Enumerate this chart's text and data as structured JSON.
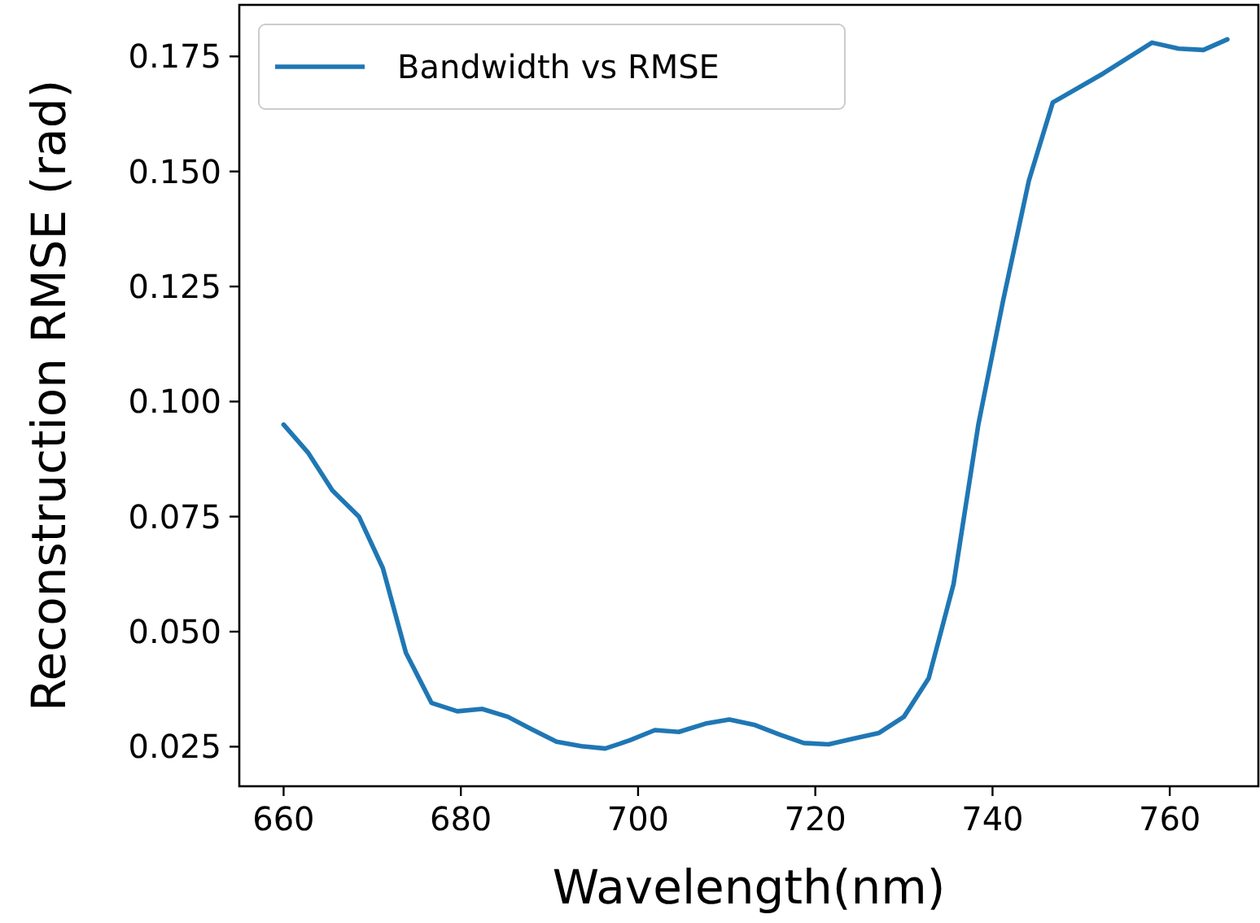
{
  "chart_data": {
    "type": "line",
    "xlabel": "Wavelength(nm)",
    "ylabel": "Reconstruction RMSE (rad)",
    "xlim": [
      655,
      770
    ],
    "xticks": [
      660,
      680,
      700,
      720,
      740,
      760
    ],
    "ylim": [
      0.0164,
      0.1862
    ],
    "yticks": [
      {
        "value": 0.025,
        "label": "0.025"
      },
      {
        "value": 0.05,
        "label": "0.050"
      },
      {
        "value": 0.075,
        "label": "0.075"
      },
      {
        "value": 0.1,
        "label": "0.100"
      },
      {
        "value": 0.125,
        "label": "0.125"
      },
      {
        "value": 0.15,
        "label": "0.150"
      },
      {
        "value": 0.175,
        "label": "0.175"
      }
    ],
    "legend": "top left",
    "grid": false,
    "marker": "none",
    "line_style": "solid",
    "series": [
      {
        "name": "Bandwidth vs RMSE",
        "color": "#1f77b4",
        "x": [
          660,
          662.8,
          665.5,
          668.5,
          671.2,
          673.8,
          676.7,
          679.6,
          682.4,
          685.3,
          688,
          690.8,
          693.6,
          696.3,
          699.1,
          701.9,
          704.6,
          707.6,
          710.3,
          713.2,
          716,
          718.7,
          721.5,
          724.2,
          727.2,
          730,
          732.8,
          735.6,
          738.4,
          741.2,
          744.1,
          746.8,
          752.5,
          758,
          761,
          763.8,
          766.5
        ],
        "values": [
          0.095,
          0.0888,
          0.0807,
          0.075,
          0.0638,
          0.0454,
          0.0345,
          0.0327,
          0.0332,
          0.0315,
          0.0288,
          0.0261,
          0.0251,
          0.0246,
          0.0264,
          0.0286,
          0.0282,
          0.03,
          0.0309,
          0.0297,
          0.0276,
          0.0258,
          0.0255,
          0.0267,
          0.028,
          0.0315,
          0.0399,
          0.0603,
          0.095,
          0.122,
          0.148,
          0.165,
          0.1713,
          0.178,
          0.1767,
          0.1764,
          0.1787
        ]
      }
    ]
  }
}
